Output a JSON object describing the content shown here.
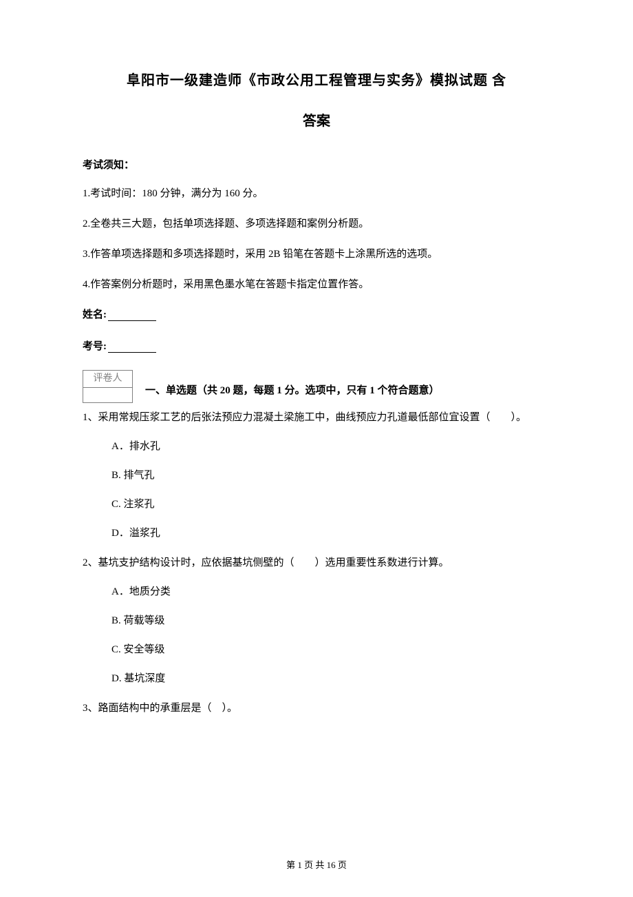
{
  "title": {
    "line1": "阜阳市一级建造师《市政公用工程管理与实务》模拟试题 含",
    "line2": "答案"
  },
  "notice_header": "考试须知：",
  "instructions": [
    "1.考试时间：180 分钟，满分为 160 分。",
    "2.全卷共三大题，包括单项选择题、多项选择题和案例分析题。",
    "3.作答单项选择题和多项选择题时，采用 2B 铅笔在答题卡上涂黑所选的选项。",
    "4.作答案例分析题时，采用黑色墨水笔在答题卡指定位置作答。"
  ],
  "fields": {
    "name_label": "姓名:",
    "id_label": "考号:"
  },
  "grader_box_label": "评卷人",
  "part1_title": "一、单选题（共 20 题，每题 1 分。选项中，只有 1 个符合题意）",
  "questions": [
    {
      "stem": "1、采用常规压浆工艺的后张法预应力混凝土梁施工中，曲线预应力孔道最低部位宜设置（　　）。",
      "options": [
        "A．排水孔",
        "B. 排气孔",
        "C. 注浆孔",
        "D．溢浆孔"
      ]
    },
    {
      "stem": "2、基坑支护结构设计时，应依据基坑侧壁的（　　）选用重要性系数进行计算。",
      "options": [
        "A．地质分类",
        "B. 荷载等级",
        "C. 安全等级",
        "D. 基坑深度"
      ]
    },
    {
      "stem": "3、路面结构中的承重层是（　）。",
      "options": []
    }
  ],
  "footer": "第 1 页 共 16 页"
}
